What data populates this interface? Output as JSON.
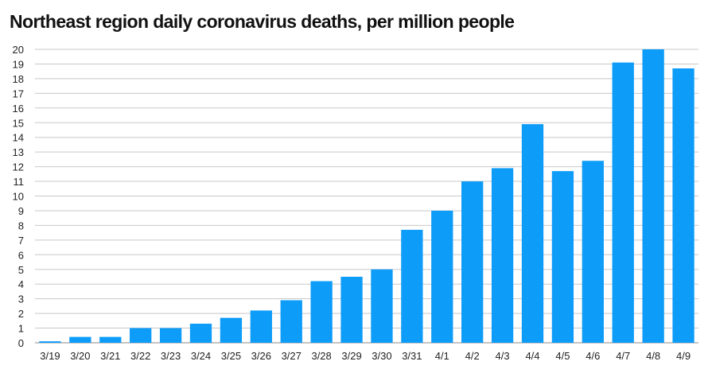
{
  "chart_data": {
    "type": "bar",
    "title": "Northeast region daily coronavirus deaths, per million people",
    "xlabel": "",
    "ylabel": "",
    "categories": [
      "3/19",
      "3/20",
      "3/21",
      "3/22",
      "3/23",
      "3/24",
      "3/25",
      "3/26",
      "3/27",
      "3/28",
      "3/29",
      "3/30",
      "3/31",
      "4/1",
      "4/2",
      "4/3",
      "4/4",
      "4/5",
      "4/6",
      "4/7",
      "4/8",
      "4/9"
    ],
    "values": [
      0.1,
      0.4,
      0.4,
      1.0,
      1.0,
      1.3,
      1.7,
      2.2,
      2.9,
      4.2,
      4.5,
      5.0,
      7.7,
      9.0,
      11.0,
      11.9,
      14.9,
      11.7,
      12.4,
      19.1,
      20.0,
      18.7
    ],
    "ylim": [
      0,
      20
    ],
    "yticks": [
      0,
      1,
      2,
      3,
      4,
      5,
      6,
      7,
      8,
      9,
      10,
      11,
      12,
      13,
      14,
      15,
      16,
      17,
      18,
      19,
      20
    ],
    "grid": true,
    "legend": "none",
    "bar_color": "#0e9cf9",
    "grid_color": "#c8c8c8"
  }
}
